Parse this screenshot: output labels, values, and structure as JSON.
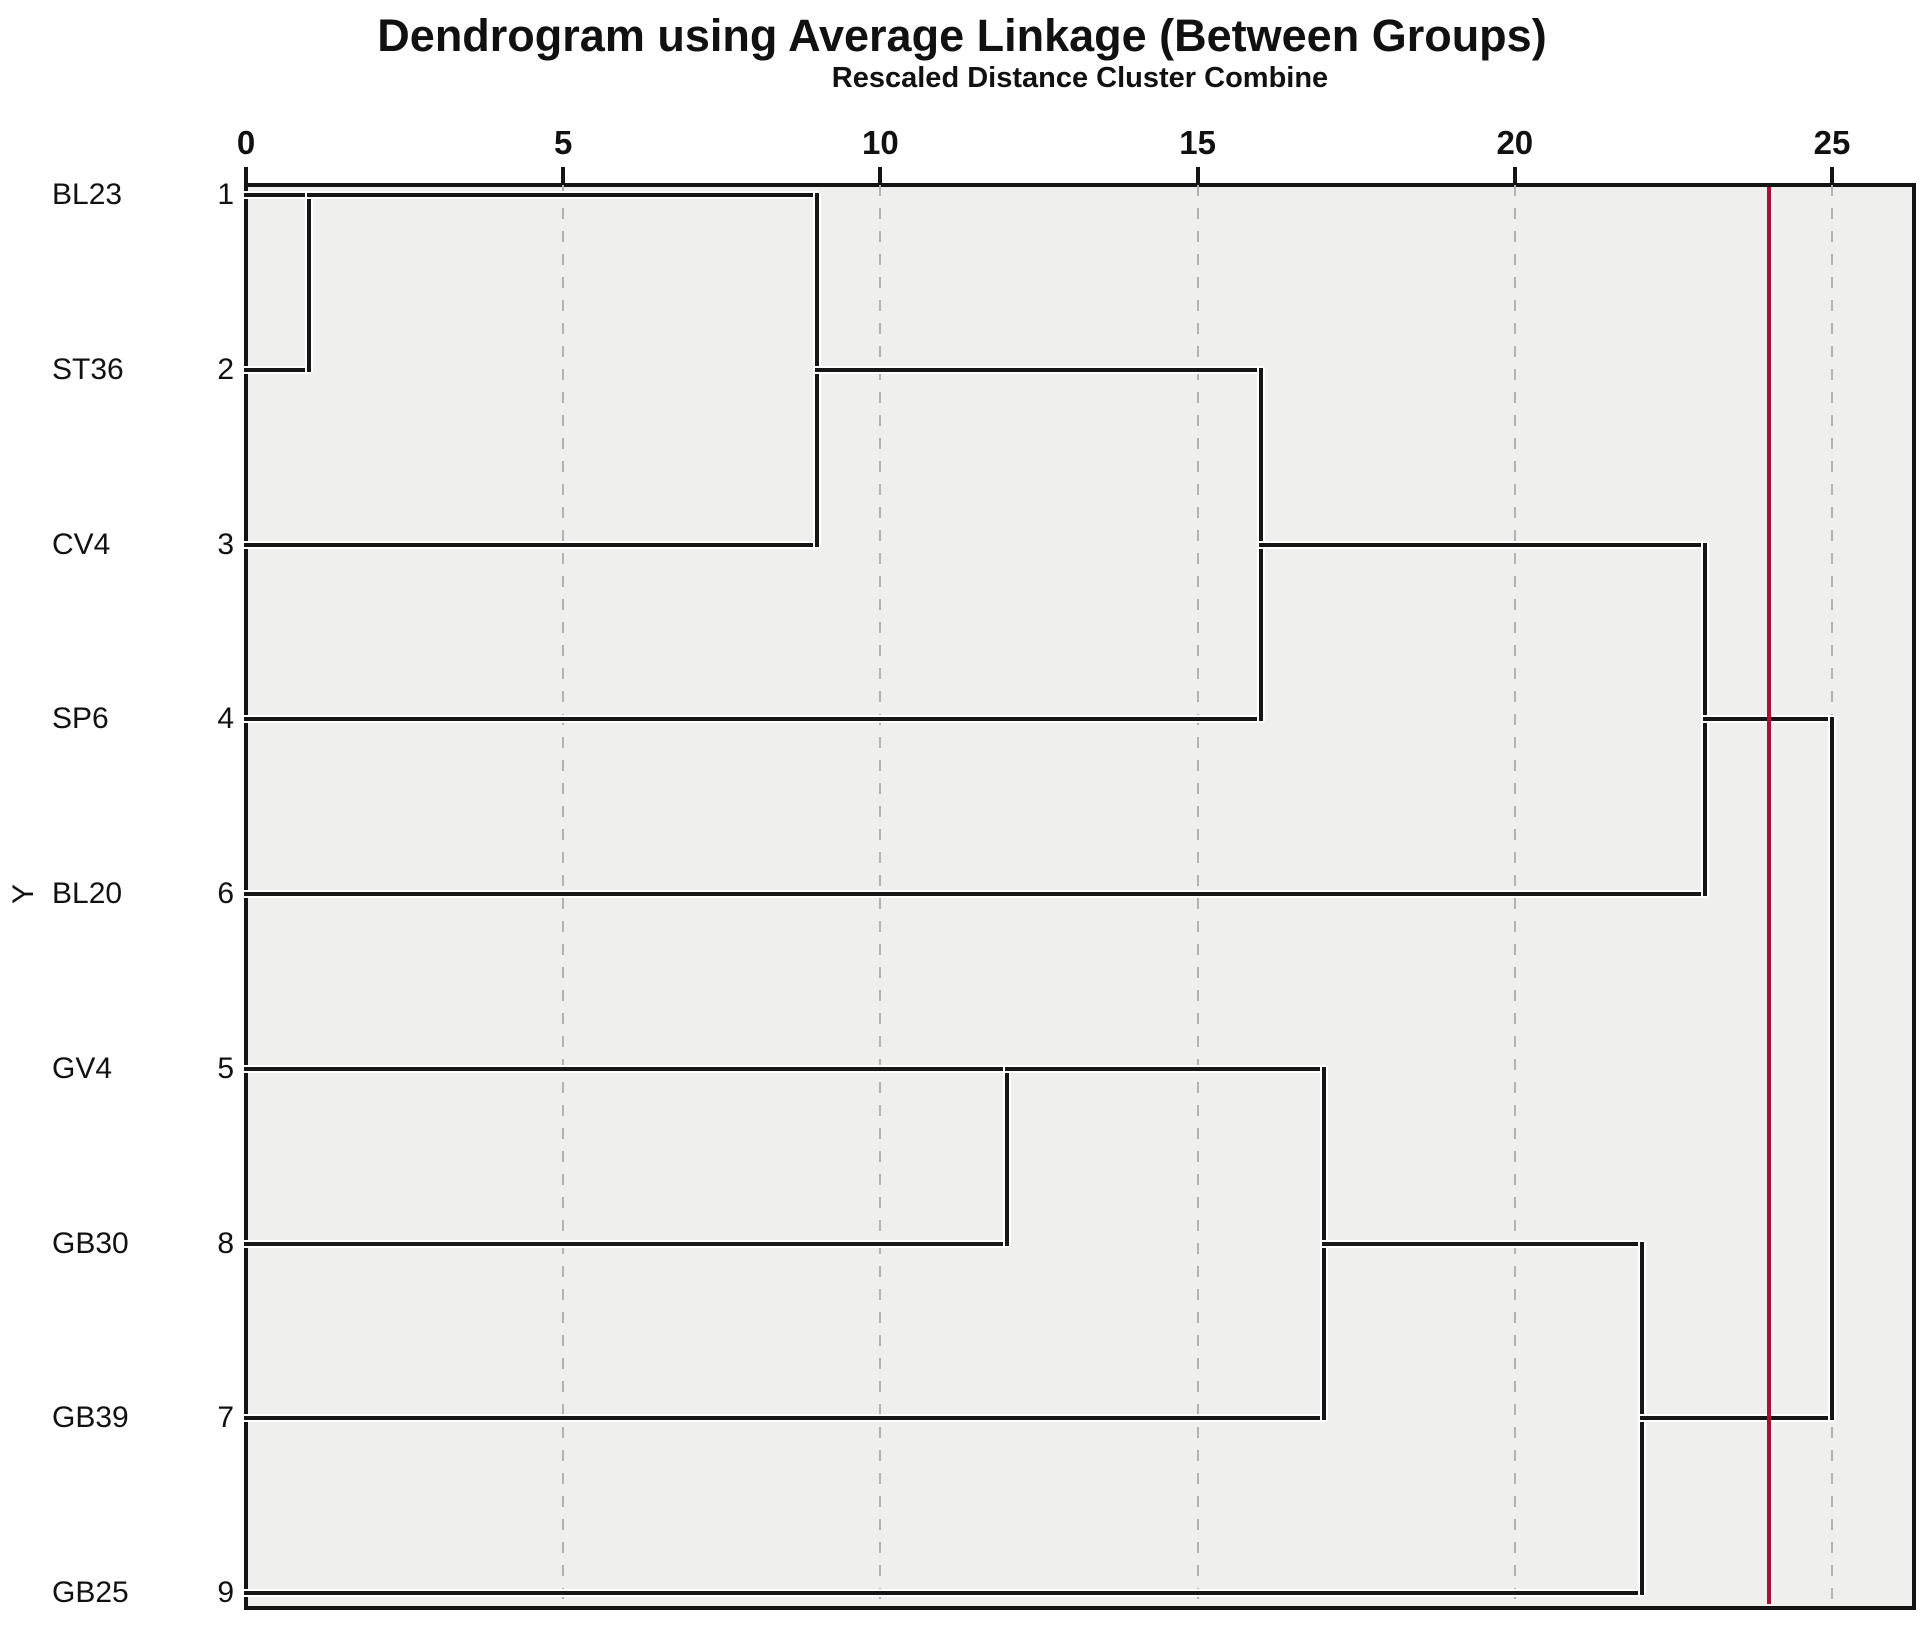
{
  "title": "Dendrogram using Average Linkage (Between Groups)",
  "subtitle": "Rescaled Distance Cluster Combine",
  "y_axis_label": "Y",
  "colors": {
    "background": "#FFFFFF",
    "panel": "#EFEFED",
    "line": "#161616",
    "gridline": "#B2B2B2",
    "cut_line": "#A81038"
  },
  "chart_data": {
    "type": "dendrogram",
    "orientation": "horizontal",
    "title": "Dendrogram using Average Linkage (Between Groups)",
    "x_axis": {
      "label": "Rescaled Distance Cluster Combine",
      "min": 0,
      "max": 26.3,
      "ticks": [
        0,
        5,
        10,
        15,
        20,
        25
      ],
      "gridlines_at": [
        5,
        10,
        15,
        20,
        25
      ],
      "grid_style": "dashed"
    },
    "cut_line_value": 24,
    "leaves": [
      {
        "id": "L1",
        "label": "BL23",
        "case_number": "1"
      },
      {
        "id": "L2",
        "label": "ST36",
        "case_number": "2"
      },
      {
        "id": "L3",
        "label": "CV4",
        "case_number": "3"
      },
      {
        "id": "L4",
        "label": "SP6",
        "case_number": "4"
      },
      {
        "id": "L5",
        "label": "BL20",
        "case_number": "6"
      },
      {
        "id": "L6",
        "label": "GV4",
        "case_number": "5"
      },
      {
        "id": "L7",
        "label": "GB30",
        "case_number": "8"
      },
      {
        "id": "L8",
        "label": "GB39",
        "case_number": "7"
      },
      {
        "id": "L9",
        "label": "GB25",
        "case_number": "9"
      }
    ],
    "merges": [
      {
        "id": "M1",
        "children": [
          "L1",
          "L2"
        ],
        "distance": 1
      },
      {
        "id": "M2",
        "children": [
          "M1",
          "L3"
        ],
        "distance": 9
      },
      {
        "id": "M3",
        "children": [
          "M2",
          "L4"
        ],
        "distance": 16
      },
      {
        "id": "M4",
        "children": [
          "M3",
          "L5"
        ],
        "distance": 23
      },
      {
        "id": "M5",
        "children": [
          "L6",
          "L7"
        ],
        "distance": 12
      },
      {
        "id": "M6",
        "children": [
          "M5",
          "L8"
        ],
        "distance": 17
      },
      {
        "id": "M7",
        "children": [
          "M6",
          "L9"
        ],
        "distance": 22
      },
      {
        "id": "M8",
        "children": [
          "M4",
          "M7"
        ],
        "distance": 25
      }
    ]
  }
}
